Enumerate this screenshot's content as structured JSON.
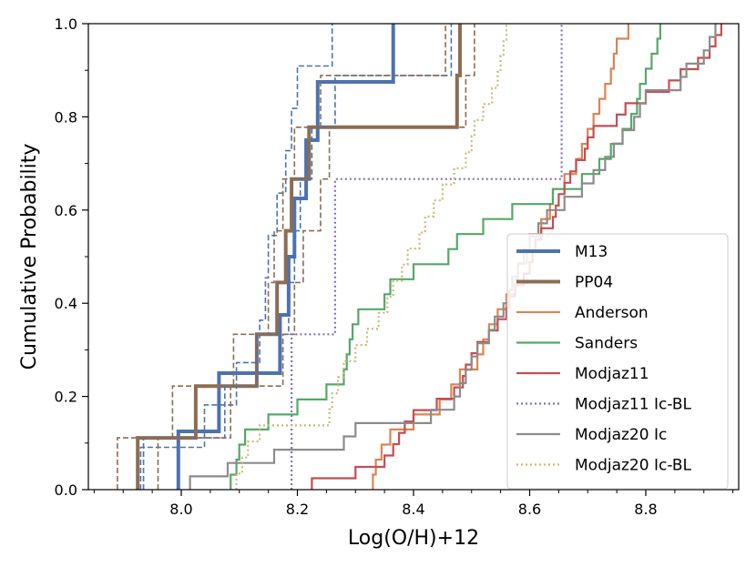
{
  "chart_data": {
    "type": "line",
    "subtype": "step-cdf",
    "title": "",
    "xlabel": "Log(O/H)+12",
    "ylabel": "Cumulative Probability",
    "xlim": [
      7.84,
      8.96
    ],
    "ylim": [
      0.0,
      1.0
    ],
    "xticks": [
      8.0,
      8.2,
      8.4,
      8.6,
      8.8
    ],
    "yticks": [
      0.0,
      0.2,
      0.4,
      0.6,
      0.8,
      1.0
    ],
    "xtick_labels": [
      "8.0",
      "8.2",
      "8.4",
      "8.6",
      "8.8"
    ],
    "ytick_labels": [
      "0.0",
      "0.2",
      "0.4",
      "0.6",
      "0.8",
      "1.0"
    ],
    "grid": false,
    "legend_position": "lower right",
    "series": [
      {
        "name": "M13",
        "color": "#4c72b0",
        "style": "solid",
        "width": 4,
        "values": [
          7.995,
          8.065,
          8.17,
          8.185,
          8.195,
          8.215,
          8.235,
          8.365
        ]
      },
      {
        "name": "PP04",
        "color": "#8c6d53",
        "style": "solid",
        "width": 4,
        "values": [
          7.925,
          8.025,
          8.13,
          8.165,
          8.18,
          8.19,
          8.22,
          8.475,
          8.48
        ]
      },
      {
        "name": "M13 error low",
        "color": "#4c72b0",
        "style": "dashed",
        "width": 1.6,
        "values": [
          7.93,
          8.04,
          8.095,
          8.135,
          8.145,
          8.15,
          8.165,
          8.18,
          8.19,
          8.2,
          8.26
        ]
      },
      {
        "name": "M13 error high",
        "color": "#4c72b0",
        "style": "dashed",
        "width": 1.6,
        "values": [
          7.935,
          8.075,
          8.13,
          8.185,
          8.195,
          8.205,
          8.225,
          8.265,
          8.465
        ]
      },
      {
        "name": "PP04 error low",
        "color": "#8c6d53",
        "style": "dashed",
        "width": 1.6,
        "values": [
          7.89,
          7.985,
          8.09,
          8.15,
          8.16,
          8.175,
          8.195,
          8.24,
          8.455
        ]
      },
      {
        "name": "PP04 error high",
        "color": "#8c6d53",
        "style": "dashed",
        "width": 1.6,
        "values": [
          7.96,
          8.085,
          8.175,
          8.195,
          8.21,
          8.24,
          8.255,
          8.49,
          8.505
        ]
      },
      {
        "name": "Anderson",
        "color": "#dd8452",
        "style": "solid",
        "width": 2.2,
        "values": [
          8.33,
          8.335,
          8.345,
          8.36,
          8.4,
          8.445,
          8.465,
          8.48,
          8.51,
          8.52,
          8.53,
          8.545,
          8.56,
          8.575,
          8.58,
          8.59,
          8.6,
          8.62,
          8.635,
          8.64,
          8.66,
          8.68,
          8.69,
          8.7,
          8.71,
          8.72,
          8.73,
          8.74,
          8.745,
          8.75,
          8.77
        ]
      },
      {
        "name": "Sanders",
        "color": "#55a868",
        "style": "solid",
        "width": 2.2,
        "values": [
          8.085,
          8.095,
          8.1,
          8.11,
          8.15,
          8.2,
          8.25,
          8.28,
          8.285,
          8.29,
          8.295,
          8.305,
          8.35,
          8.36,
          8.4,
          8.46,
          8.475,
          8.52,
          8.57,
          8.64,
          8.69,
          8.72,
          8.74,
          8.76,
          8.775,
          8.785,
          8.79,
          8.8,
          8.81,
          8.82,
          8.825
        ]
      },
      {
        "name": "Modjaz11",
        "color": "#c44e52",
        "style": "solid",
        "width": 2.2,
        "values": [
          8.225,
          8.3,
          8.35,
          8.365,
          8.375,
          8.385,
          8.4,
          8.44,
          8.47,
          8.485,
          8.49,
          8.5,
          8.51,
          8.53,
          8.545,
          8.56,
          8.565,
          8.575,
          8.59,
          8.6,
          8.605,
          8.61,
          8.62,
          8.64,
          8.645,
          8.65,
          8.66,
          8.67,
          8.68,
          8.695,
          8.7,
          8.71,
          8.75,
          8.765,
          8.8,
          8.84,
          8.86,
          8.89,
          8.91,
          8.92,
          8.93
        ]
      },
      {
        "name": "Modjaz11 Ic-BL",
        "color": "#8172b3",
        "style": "dotted",
        "width": 2.2,
        "values": [
          8.19,
          8.265,
          8.655
        ]
      },
      {
        "name": "Modjaz20 Ic",
        "color": "#8c8c8c",
        "style": "solid",
        "width": 2.2,
        "values": [
          8.015,
          8.08,
          8.16,
          8.28,
          8.3,
          8.43,
          8.47,
          8.48,
          8.49,
          8.5,
          8.51,
          8.53,
          8.54,
          8.555,
          8.565,
          8.57,
          8.58,
          8.595,
          8.6,
          8.615,
          8.63,
          8.66,
          8.69,
          8.71,
          8.73,
          8.745,
          8.76,
          8.78,
          8.79,
          8.8,
          8.86,
          8.87,
          8.9,
          8.91,
          8.92
        ]
      },
      {
        "name": "Modjaz20 Ic-BL",
        "color": "#ccb974",
        "style": "dotted",
        "width": 2.2,
        "values": [
          8.095,
          8.105,
          8.115,
          8.135,
          8.255,
          8.26,
          8.27,
          8.28,
          8.3,
          8.32,
          8.34,
          8.355,
          8.365,
          8.38,
          8.39,
          8.41,
          8.42,
          8.435,
          8.45,
          8.47,
          8.49,
          8.5,
          8.505,
          8.52,
          8.535,
          8.545,
          8.55,
          8.555,
          8.56
        ]
      }
    ],
    "legend": [
      {
        "label": "M13",
        "color": "#4c72b0",
        "style": "solid",
        "width": 4
      },
      {
        "label": "PP04",
        "color": "#8c6d53",
        "style": "solid",
        "width": 4
      },
      {
        "label": "Anderson",
        "color": "#dd8452",
        "style": "solid",
        "width": 2.2
      },
      {
        "label": "Sanders",
        "color": "#55a868",
        "style": "solid",
        "width": 2.2
      },
      {
        "label": "Modjaz11",
        "color": "#c44e52",
        "style": "solid",
        "width": 2.2
      },
      {
        "label": "Modjaz11 Ic-BL",
        "color": "#8172b3",
        "style": "dotted",
        "width": 2.2
      },
      {
        "label": "Modjaz20 Ic",
        "color": "#8c8c8c",
        "style": "solid",
        "width": 2.2
      },
      {
        "label": "Modjaz20 Ic-BL",
        "color": "#ccb974",
        "style": "dotted",
        "width": 2.2
      }
    ]
  }
}
